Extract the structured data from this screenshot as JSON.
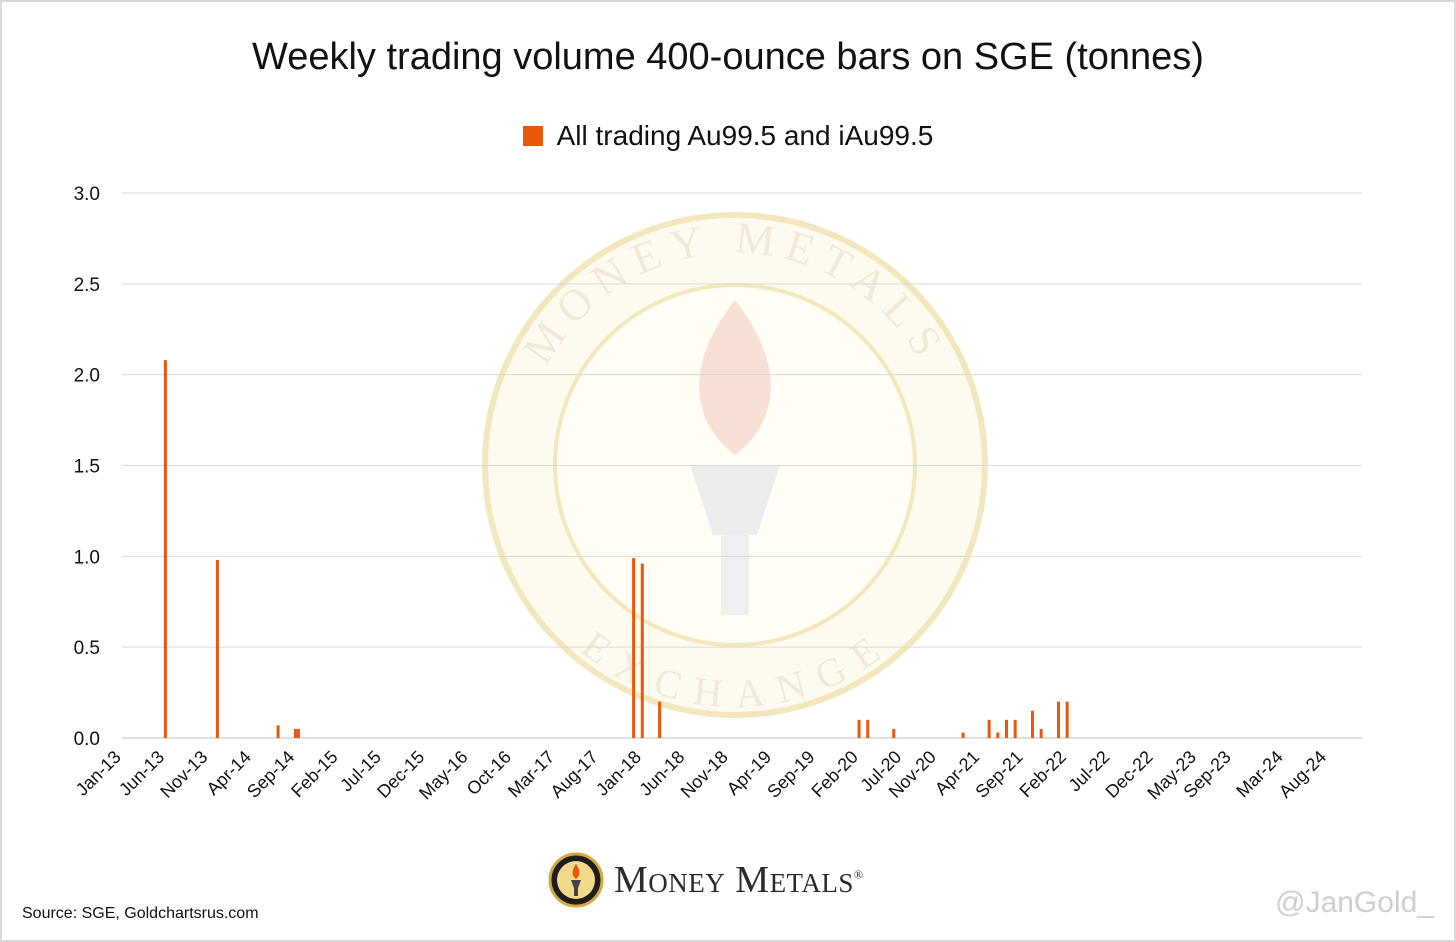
{
  "chart_data": {
    "type": "bar",
    "title": "Weekly trading volume 400-ounce bars on SGE (tonnes)",
    "legend": [
      {
        "name": "All trading Au99.5 and iAu99.5",
        "color": "#e8590c"
      }
    ],
    "x_range": [
      "2013-01",
      "2024-12"
    ],
    "x_tick_labels": [
      "Jan-13",
      "Jun-13",
      "Nov-13",
      "Apr-14",
      "Sep-14",
      "Feb-15",
      "Jul-15",
      "Dec-15",
      "May-16",
      "Oct-16",
      "Mar-17",
      "Aug-17",
      "Jan-18",
      "Jun-18",
      "Nov-18",
      "Apr-19",
      "Sep-19",
      "Feb-20",
      "Jul-20",
      "Nov-20",
      "Apr-21",
      "Sep-21",
      "Feb-22",
      "Jul-22",
      "Dec-22",
      "May-23",
      "Sep-23",
      "Mar-24",
      "Aug-24"
    ],
    "y_ticks": [
      "0.0",
      "0.5",
      "1.0",
      "1.5",
      "2.0",
      "2.5",
      "3.0"
    ],
    "ylim": [
      0,
      3.0
    ],
    "grid": true,
    "legend_position": "top",
    "series": [
      {
        "name": "All trading Au99.5 and iAu99.5",
        "points": [
          {
            "x": "2013-06",
            "y": 2.08
          },
          {
            "x": "2013-12",
            "y": 0.98
          },
          {
            "x": "2014-07",
            "y": 0.07
          },
          {
            "x": "2014-09",
            "y": 0.05
          },
          {
            "x": "2014-09",
            "y": 0.05
          },
          {
            "x": "2017-12",
            "y": 0.99
          },
          {
            "x": "2018-01",
            "y": 0.96
          },
          {
            "x": "2018-03",
            "y": 0.2
          },
          {
            "x": "2020-02",
            "y": 0.1
          },
          {
            "x": "2020-03",
            "y": 0.1
          },
          {
            "x": "2020-06",
            "y": 0.05
          },
          {
            "x": "2021-02",
            "y": 0.03
          },
          {
            "x": "2021-05",
            "y": 0.1
          },
          {
            "x": "2021-06",
            "y": 0.03
          },
          {
            "x": "2021-07",
            "y": 0.1
          },
          {
            "x": "2021-08",
            "y": 0.1
          },
          {
            "x": "2021-10",
            "y": 0.15
          },
          {
            "x": "2021-11",
            "y": 0.05
          },
          {
            "x": "2022-01",
            "y": 0.2
          },
          {
            "x": "2022-02",
            "y": 0.2
          }
        ]
      }
    ]
  },
  "watermark": {
    "top_text": "MONEY METALS",
    "bottom_text": "EXCHANGE"
  },
  "brand": {
    "name": "Money Metals",
    "mark": "®",
    "logo_text_top": "MONEY METALS",
    "logo_text_bottom": "EXCHANGE"
  },
  "footer": {
    "source": "Source: SGE, Goldchartsrus.com",
    "handle": "@JanGold_"
  },
  "colors": {
    "bar": "#e8590c",
    "grid": "#d9d9d9",
    "axis": "#bfbfbf",
    "watermark": "#f3e7bd"
  }
}
